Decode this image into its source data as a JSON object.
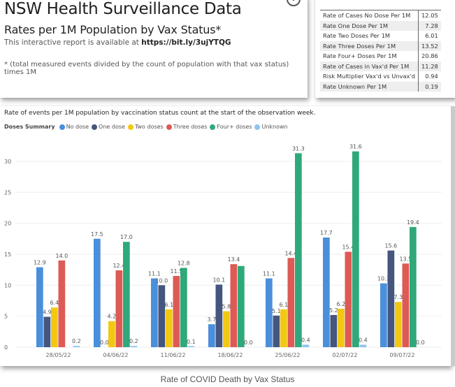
{
  "header": {
    "title": "NSW Health Surveillance Data",
    "subtitle": "Rates per 1M Population by Vax Status*",
    "availability_prefix": "This interactive report is available at ",
    "availability_link": "https://bit.ly/3ujYTQG",
    "footnote": "* (total measured events divided by the count of population with that vax status) times 1M",
    "info_icon": "info-icon"
  },
  "stats_table": {
    "rows": [
      {
        "label": "Rate of Cases No Dose Per 1M",
        "value": "12.05"
      },
      {
        "label": "Rate One Dose Per 1M",
        "value": "7.28"
      },
      {
        "label": "Rate Two Doses Per 1M",
        "value": "6.01"
      },
      {
        "label": "Rate Three Doses Per 1M",
        "value": "13.52"
      },
      {
        "label": "Rate Four+ Doses Per 1M",
        "value": "20.86"
      },
      {
        "label": "Rate of Cases in Vax'd Per 1M",
        "value": "11.28"
      },
      {
        "label": "Risk Multiplier Vax'd vs Unvax'd",
        "value": "0.94"
      },
      {
        "label": "Rate Unknown Per 1M",
        "value": "0.19"
      }
    ]
  },
  "chart_heading": "Rate of events per 1M population by vaccination status count at the start of the observation week.",
  "legend_title": "Doses Summary",
  "caption": "Rate of COVID Death by Vax Status",
  "chart_data": {
    "type": "bar",
    "title": "Rate of events per 1M population by vaccination status count at the start of the observation week.",
    "xlabel": "",
    "ylabel": "",
    "ylim": [
      0,
      33
    ],
    "yticks": [
      0,
      5,
      10,
      15,
      20,
      25,
      30
    ],
    "grid": true,
    "legend_position": "top-left",
    "categories": [
      "28/05/22",
      "04/06/22",
      "11/06/22",
      "18/06/22",
      "25/06/22",
      "02/07/22",
      "09/07/22"
    ],
    "series": [
      {
        "name": "No dose",
        "color": "#4a8fdb",
        "values": [
          12.9,
          17.5,
          11.1,
          3.7,
          11.1,
          17.7,
          10.3
        ],
        "labels": [
          "12.9",
          "17.5",
          "11.1",
          "3.7",
          "11.1",
          "17.7",
          "10.3"
        ]
      },
      {
        "name": "One dose",
        "color": "#44557e",
        "values": [
          4.9,
          0.0,
          10.0,
          10.1,
          5.1,
          5.2,
          15.6
        ],
        "labels": [
          "4.9",
          "0.0",
          "10.0",
          "10.1",
          "5.1",
          "5.2",
          "15.6"
        ]
      },
      {
        "name": "Two doses",
        "color": "#f2c811",
        "values": [
          6.4,
          4.2,
          6.1,
          5.8,
          6.1,
          6.2,
          7.3
        ],
        "labels": [
          "6.4",
          "4.2",
          "6.1",
          "5.8",
          "6.1",
          "6.2",
          "7.3"
        ]
      },
      {
        "name": "Three doses",
        "color": "#dd5a55",
        "values": [
          14.0,
          12.4,
          11.5,
          13.4,
          14.4,
          15.4,
          13.5
        ],
        "labels": [
          "14.0",
          "12.4",
          "11.5",
          "13.4",
          "14.4",
          "15.4",
          "13.5"
        ]
      },
      {
        "name": "Four+ doses",
        "color": "#2fa97a",
        "values": [
          null,
          17.0,
          12.8,
          13.1,
          31.3,
          31.6,
          19.4
        ],
        "labels": [
          "",
          "17.0",
          "12.8",
          "",
          "31.3",
          "31.6",
          "19.4"
        ]
      },
      {
        "name": "Unknown",
        "color": "#8fc3ee",
        "values": [
          0.2,
          0.2,
          0.1,
          0.0,
          0.4,
          0.4,
          0.0
        ],
        "labels": [
          "0.2",
          "0.2",
          "0.1",
          "0.0",
          "0.4",
          "0.4",
          "0.0"
        ]
      }
    ]
  }
}
